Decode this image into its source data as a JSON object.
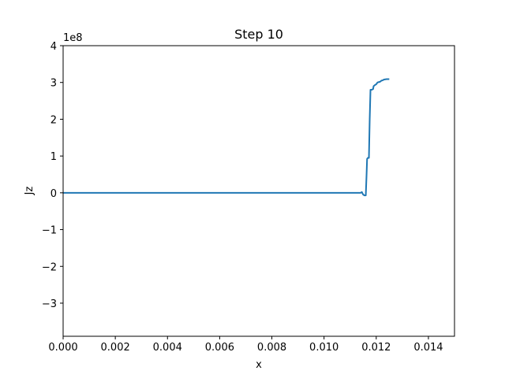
{
  "chart_data": {
    "type": "line",
    "title": "Step 10",
    "xlabel": "x",
    "ylabel": "Jz",
    "y_offset_label": "1e8",
    "xlim": [
      0,
      0.015
    ],
    "ylim": [
      -390000000,
      400000000
    ],
    "x_ticks": [
      0,
      0.002,
      0.004,
      0.006,
      0.008,
      0.01,
      0.012,
      0.014
    ],
    "x_tick_labels": [
      "0.000",
      "0.002",
      "0.004",
      "0.006",
      "0.008",
      "0.010",
      "0.012",
      "0.014"
    ],
    "y_ticks": [
      -300000000,
      -200000000,
      -100000000,
      0,
      100000000,
      200000000,
      300000000,
      400000000
    ],
    "y_tick_labels": [
      "−3",
      "−2",
      "−1",
      "0",
      "1",
      "2",
      "3",
      "4"
    ],
    "grid": false,
    "series": [
      {
        "color": "#1f77b4",
        "x": [
          0,
          0.0114,
          0.01145,
          0.0115,
          0.01155,
          0.0116,
          0.01163,
          0.01165,
          0.01168,
          0.01172,
          0.01175,
          0.01178,
          0.01182,
          0.01188,
          0.0119,
          0.01195,
          0.012,
          0.01205,
          0.0121,
          0.01215,
          0.0122,
          0.01225,
          0.0123,
          0.0124,
          0.0125
        ],
        "y": [
          0,
          0,
          2000000,
          -5000000,
          -7000000,
          -7000000,
          50000000,
          92000000,
          95000000,
          95000000,
          200000000,
          280000000,
          280000000,
          282000000,
          290000000,
          293000000,
          295000000,
          300000000,
          301000000,
          302000000,
          305000000,
          306000000,
          308000000,
          309000000,
          309000000
        ]
      }
    ]
  }
}
